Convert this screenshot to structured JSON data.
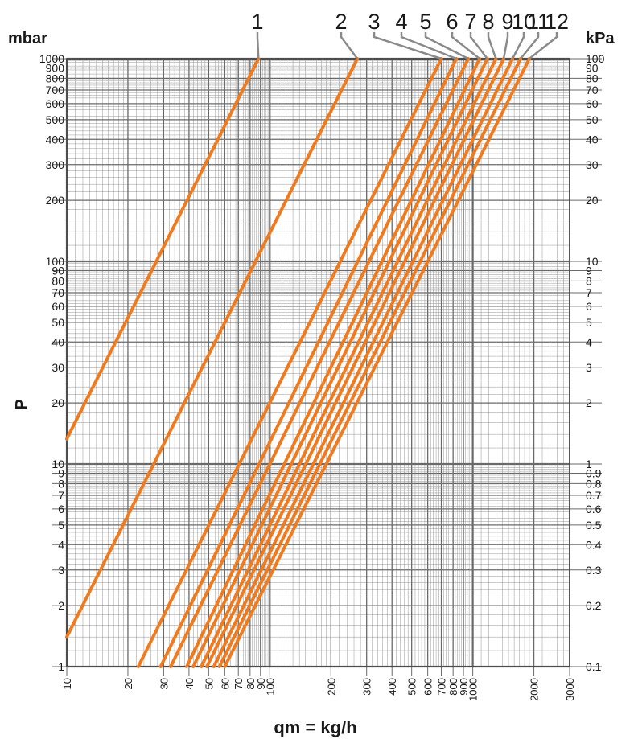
{
  "chart_data": {
    "type": "line",
    "title": "",
    "xlabel": "qm = kg/h",
    "ylabel": "P",
    "y_unit_left": "mbar",
    "y_unit_right": "kPa",
    "x_scale": "log",
    "y_scale": "log",
    "xlim": [
      10,
      3000
    ],
    "ylim": [
      1,
      1000
    ],
    "grid": true,
    "line_color": "#f07a1e",
    "grid_color": "#8a8a8a",
    "x_ticks": [
      "10",
      "20",
      "30",
      "40",
      "50",
      "60",
      "70",
      "80",
      "90",
      "100",
      "200",
      "300",
      "400",
      "500",
      "600",
      "700",
      "800",
      "900",
      "1000",
      "2000",
      "3000"
    ],
    "x_tick_values": [
      10,
      20,
      30,
      40,
      50,
      60,
      70,
      80,
      90,
      100,
      200,
      300,
      400,
      500,
      600,
      700,
      800,
      900,
      1000,
      2000,
      3000
    ],
    "y_ticks_left": [
      "1",
      "2",
      "3",
      "4",
      "5",
      "6",
      "7",
      "8",
      "9",
      "10",
      "20",
      "30",
      "40",
      "50",
      "60",
      "70",
      "80",
      "90",
      "100",
      "200",
      "300",
      "400",
      "500",
      "600",
      "700",
      "800",
      "900",
      "1000"
    ],
    "y_tick_values_left": [
      1,
      2,
      3,
      4,
      5,
      6,
      7,
      8,
      9,
      10,
      20,
      30,
      40,
      50,
      60,
      70,
      80,
      90,
      100,
      200,
      300,
      400,
      500,
      600,
      700,
      800,
      900,
      1000
    ],
    "y_ticks_right": [
      "0.1",
      "0.2",
      "0.3",
      "0.4",
      "0.5",
      "0.6",
      "0.7",
      "0.8",
      "0.9",
      "1",
      "2",
      "3",
      "4",
      "5",
      "6",
      "7",
      "8",
      "9",
      "10",
      "20",
      "30",
      "40",
      "50",
      "60",
      "70",
      "80",
      "90",
      "100"
    ],
    "series": [
      {
        "name": "1",
        "points": [
          [
            10,
            13.3
          ],
          [
            88,
            1000
          ]
        ]
      },
      {
        "name": "2",
        "points": [
          [
            10,
            1.4
          ],
          [
            270,
            1000
          ]
        ]
      },
      {
        "name": "3",
        "points": [
          [
            22.5,
            1
          ],
          [
            700,
            1000
          ]
        ]
      },
      {
        "name": "4",
        "points": [
          [
            29,
            1
          ],
          [
            830,
            1000
          ]
        ]
      },
      {
        "name": "5",
        "points": [
          [
            32.5,
            1
          ],
          [
            950,
            1000
          ]
        ]
      },
      {
        "name": "6",
        "points": [
          [
            39,
            1
          ],
          [
            1080,
            1000
          ]
        ]
      },
      {
        "name": "7",
        "points": [
          [
            42,
            1
          ],
          [
            1180,
            1000
          ]
        ]
      },
      {
        "name": "8",
        "points": [
          [
            46,
            1
          ],
          [
            1300,
            1000
          ]
        ]
      },
      {
        "name": "9",
        "points": [
          [
            49,
            1
          ],
          [
            1420,
            1000
          ]
        ]
      },
      {
        "name": "10",
        "points": [
          [
            53,
            1
          ],
          [
            1570,
            1000
          ]
        ]
      },
      {
        "name": "11",
        "points": [
          [
            56.5,
            1
          ],
          [
            1720,
            1000
          ]
        ]
      },
      {
        "name": "12",
        "points": [
          [
            60,
            1
          ],
          [
            1900,
            1000
          ]
        ]
      }
    ]
  }
}
